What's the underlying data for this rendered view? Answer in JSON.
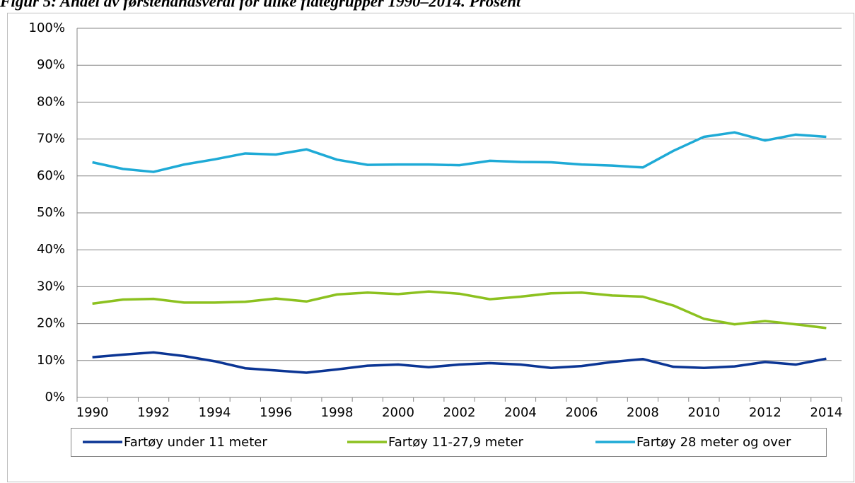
{
  "chart_data": {
    "type": "line",
    "title": "Figur 5: Andel av førstehåndsverdi for ulike flåtegrupper 1990–2014. Prosent",
    "categories": [
      "1990",
      null,
      "1992",
      null,
      "1994",
      null,
      "1996",
      null,
      "1998",
      null,
      "2000",
      null,
      "2002",
      null,
      "2004",
      null,
      "2006",
      null,
      "2008",
      null,
      "2010",
      null,
      "2012",
      null,
      "2014"
    ],
    "series": [
      {
        "name": "Fartøy under 11 meter",
        "color": "#0b3594",
        "values": [
          10.9,
          11.6,
          12.2,
          11.2,
          9.8,
          7.9,
          7.3,
          6.7,
          7.6,
          8.6,
          8.9,
          8.2,
          8.9,
          9.3,
          8.9,
          8.0,
          8.5,
          9.6,
          10.4,
          8.3,
          8.0,
          8.4,
          9.6,
          8.9,
          10.5
        ]
      },
      {
        "name": "Fartøy 11-27,9 meter",
        "color": "#8cc11f",
        "values": [
          25.4,
          26.5,
          26.7,
          25.7,
          25.7,
          25.9,
          26.8,
          26.0,
          27.9,
          28.4,
          28.0,
          28.7,
          28.1,
          26.6,
          27.3,
          28.2,
          28.4,
          27.6,
          27.3,
          24.9,
          21.3,
          19.8,
          20.7,
          19.8,
          18.8
        ]
      },
      {
        "name": "Fartøy 28 meter og over",
        "color": "#1eaad6",
        "values": [
          63.7,
          61.9,
          61.1,
          63.1,
          64.5,
          66.1,
          65.8,
          67.2,
          64.4,
          63.0,
          63.1,
          63.1,
          62.9,
          64.1,
          63.8,
          63.7,
          63.1,
          62.8,
          62.3,
          66.8,
          70.6,
          71.8,
          69.6,
          71.2,
          70.6
        ]
      }
    ],
    "ylim": [
      0,
      100
    ],
    "yticks": [
      {
        "value": 0,
        "label": "0%"
      },
      {
        "value": 10,
        "label": "10%"
      },
      {
        "value": 20,
        "label": "20%"
      },
      {
        "value": 30,
        "label": "30%"
      },
      {
        "value": 40,
        "label": "40%"
      },
      {
        "value": 50,
        "label": "50%"
      },
      {
        "value": 60,
        "label": "60%"
      },
      {
        "value": 70,
        "label": "70%"
      },
      {
        "value": 80,
        "label": "80%"
      },
      {
        "value": 90,
        "label": "90%"
      },
      {
        "value": 100,
        "label": "100%"
      }
    ],
    "grid": true,
    "legend": "bottom"
  }
}
